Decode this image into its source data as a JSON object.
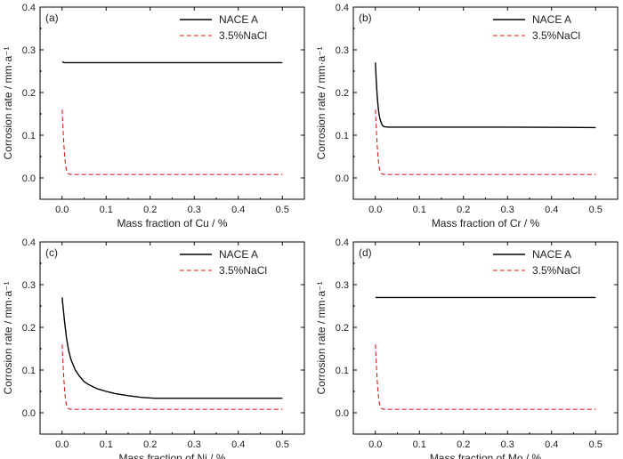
{
  "legend": {
    "nace": "NACE A",
    "nacl": "3.5%NaCl"
  },
  "colors": {
    "nace": "#000000",
    "nacl": "#e0201b"
  },
  "chart_data": [
    {
      "type": "line",
      "panel_label": "(a)",
      "xlabel": "Mass fraction of Cu / %",
      "ylabel": "Corrosion rate / mm·a⁻¹",
      "xlim": [
        -0.05,
        0.55
      ],
      "ylim": [
        -0.05,
        0.4
      ],
      "xticks": [
        0.0,
        0.1,
        0.2,
        0.3,
        0.4,
        0.5
      ],
      "yticks": [
        0.0,
        0.1,
        0.2,
        0.3,
        0.4
      ],
      "legend_position": "top-right",
      "series": [
        {
          "name": "NACE A",
          "style": "solid",
          "x": [
            0,
            0.005,
            0.1,
            0.2,
            0.3,
            0.4,
            0.5
          ],
          "y": [
            0.272,
            0.27,
            0.27,
            0.27,
            0.27,
            0.27,
            0.27
          ]
        },
        {
          "name": "3.5%NaCl",
          "style": "dashed",
          "x": [
            0,
            0.002,
            0.004,
            0.006,
            0.008,
            0.01,
            0.013,
            0.016,
            0.02,
            0.1,
            0.3,
            0.5
          ],
          "y": [
            0.16,
            0.12,
            0.08,
            0.05,
            0.03,
            0.018,
            0.011,
            0.009,
            0.008,
            0.008,
            0.008,
            0.008
          ]
        }
      ]
    },
    {
      "type": "line",
      "panel_label": "(b)",
      "xlabel": "Mass fraction of Cr / %",
      "ylabel": "Corrosion rate / mm·a⁻¹",
      "xlim": [
        -0.05,
        0.55
      ],
      "ylim": [
        -0.05,
        0.4
      ],
      "xticks": [
        0.0,
        0.1,
        0.2,
        0.3,
        0.4,
        0.5
      ],
      "yticks": [
        0.0,
        0.1,
        0.2,
        0.3,
        0.4
      ],
      "legend_position": "top-right",
      "series": [
        {
          "name": "NACE A",
          "style": "solid",
          "x": [
            0,
            0.002,
            0.004,
            0.006,
            0.008,
            0.01,
            0.013,
            0.016,
            0.02,
            0.03,
            0.1,
            0.3,
            0.5
          ],
          "y": [
            0.27,
            0.23,
            0.195,
            0.17,
            0.152,
            0.14,
            0.13,
            0.123,
            0.12,
            0.119,
            0.119,
            0.119,
            0.118
          ]
        },
        {
          "name": "3.5%NaCl",
          "style": "dashed",
          "x": [
            0,
            0.002,
            0.004,
            0.006,
            0.008,
            0.01,
            0.013,
            0.016,
            0.02,
            0.1,
            0.3,
            0.5
          ],
          "y": [
            0.16,
            0.12,
            0.08,
            0.05,
            0.03,
            0.018,
            0.011,
            0.009,
            0.008,
            0.008,
            0.008,
            0.008
          ]
        }
      ]
    },
    {
      "type": "line",
      "panel_label": "(c)",
      "xlabel": "Mass fraction of Ni / %",
      "ylabel": "Corrosion rate / mm·a⁻¹",
      "xlim": [
        -0.05,
        0.55
      ],
      "ylim": [
        -0.05,
        0.4
      ],
      "xticks": [
        0.0,
        0.1,
        0.2,
        0.3,
        0.4,
        0.5
      ],
      "yticks": [
        0.0,
        0.1,
        0.2,
        0.3,
        0.4
      ],
      "legend_position": "top-right",
      "series": [
        {
          "name": "NACE A",
          "style": "solid",
          "x": [
            0,
            0.005,
            0.01,
            0.015,
            0.02,
            0.03,
            0.04,
            0.05,
            0.06,
            0.08,
            0.1,
            0.12,
            0.15,
            0.18,
            0.21,
            0.3,
            0.4,
            0.5
          ],
          "y": [
            0.27,
            0.22,
            0.175,
            0.145,
            0.125,
            0.1,
            0.085,
            0.073,
            0.066,
            0.056,
            0.05,
            0.045,
            0.04,
            0.036,
            0.034,
            0.034,
            0.034,
            0.034
          ]
        },
        {
          "name": "3.5%NaCl",
          "style": "dashed",
          "x": [
            0,
            0.002,
            0.004,
            0.006,
            0.008,
            0.01,
            0.013,
            0.016,
            0.02,
            0.1,
            0.3,
            0.5
          ],
          "y": [
            0.16,
            0.12,
            0.08,
            0.05,
            0.03,
            0.018,
            0.011,
            0.009,
            0.008,
            0.008,
            0.008,
            0.008
          ]
        }
      ]
    },
    {
      "type": "line",
      "panel_label": "(d)",
      "xlabel": "Mass fraction of Mo / %",
      "ylabel": "Corrosion rate / mm·a⁻¹",
      "xlim": [
        -0.05,
        0.55
      ],
      "ylim": [
        -0.05,
        0.4
      ],
      "xticks": [
        0.0,
        0.1,
        0.2,
        0.3,
        0.4,
        0.5
      ],
      "yticks": [
        0.0,
        0.1,
        0.2,
        0.3,
        0.4
      ],
      "legend_position": "top-right",
      "series": [
        {
          "name": "NACE A",
          "style": "solid",
          "x": [
            0,
            0.1,
            0.2,
            0.3,
            0.4,
            0.5
          ],
          "y": [
            0.27,
            0.27,
            0.27,
            0.27,
            0.27,
            0.27
          ]
        },
        {
          "name": "3.5%NaCl",
          "style": "dashed",
          "x": [
            0,
            0.002,
            0.004,
            0.006,
            0.008,
            0.01,
            0.013,
            0.016,
            0.02,
            0.1,
            0.3,
            0.5
          ],
          "y": [
            0.16,
            0.12,
            0.08,
            0.05,
            0.03,
            0.018,
            0.011,
            0.009,
            0.008,
            0.008,
            0.008,
            0.008
          ]
        }
      ]
    }
  ]
}
